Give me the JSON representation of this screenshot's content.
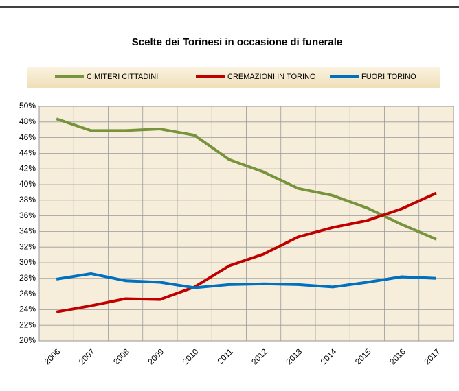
{
  "chart_data": {
    "type": "line",
    "title": "Scelte dei Torinesi in occasione di funerale",
    "categories": [
      "2006",
      "2007",
      "2008",
      "2009",
      "2010",
      "2011",
      "2012",
      "2013",
      "2014",
      "2015",
      "2016",
      "2017"
    ],
    "series": [
      {
        "name": "CIMITERI CITTADINI",
        "color": "#77933c",
        "values": [
          48.4,
          46.9,
          46.9,
          47.1,
          46.3,
          43.2,
          41.6,
          39.5,
          38.6,
          37.0,
          34.9,
          33.0
        ]
      },
      {
        "name": "CREMAZIONI IN TORINO",
        "color": "#c00000",
        "values": [
          23.7,
          24.5,
          25.4,
          25.3,
          26.9,
          29.6,
          31.1,
          33.3,
          34.5,
          35.4,
          36.9,
          38.9
        ]
      },
      {
        "name": "FUORI TORINO",
        "color": "#0070c0",
        "values": [
          27.9,
          28.6,
          27.7,
          27.5,
          26.8,
          27.2,
          27.3,
          27.2,
          26.9,
          27.5,
          28.2,
          28.0
        ]
      }
    ],
    "ylim": [
      20,
      50
    ],
    "yticks": [
      {
        "value": 20,
        "label": "20%"
      },
      {
        "value": 22,
        "label": "22%"
      },
      {
        "value": 24,
        "label": "24%"
      },
      {
        "value": 26,
        "label": "26%"
      },
      {
        "value": 28,
        "label": "28%"
      },
      {
        "value": 30,
        "label": "30%"
      },
      {
        "value": 32,
        "label": "32%"
      },
      {
        "value": 34,
        "label": "34%"
      },
      {
        "value": 36,
        "label": "36%"
      },
      {
        "value": 38,
        "label": "38%"
      },
      {
        "value": 40,
        "label": "40%"
      },
      {
        "value": 42,
        "label": "42%"
      },
      {
        "value": 44,
        "label": "44%"
      },
      {
        "value": 46,
        "label": "46%"
      },
      {
        "value": 48,
        "label": "48%"
      },
      {
        "value": 50,
        "label": "50%"
      }
    ],
    "grid": true,
    "legend": "top"
  }
}
